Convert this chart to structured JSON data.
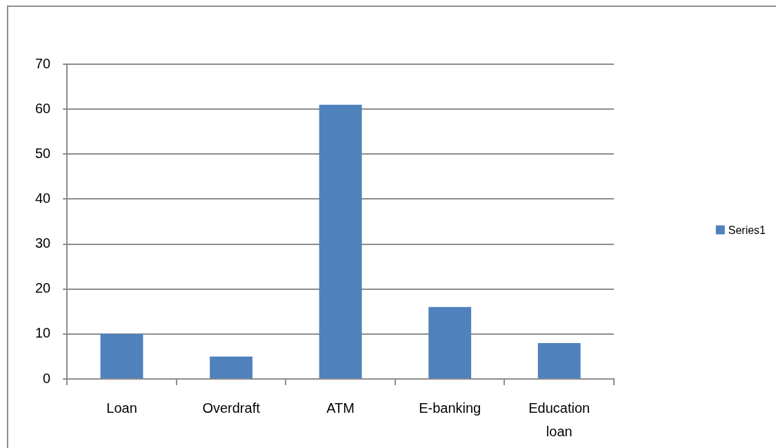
{
  "chart_data": {
    "type": "bar",
    "categories": [
      "Loan",
      "Overdraft",
      "ATM",
      "E-banking",
      "Education loan"
    ],
    "series": [
      {
        "name": "Series1",
        "color": "#4f81bd",
        "values": [
          10,
          5,
          61,
          16,
          8
        ]
      }
    ],
    "ylim": [
      0,
      70
    ],
    "yticks": [
      0,
      10,
      20,
      30,
      40,
      50,
      60,
      70
    ],
    "grid": "y",
    "legend": "right"
  }
}
